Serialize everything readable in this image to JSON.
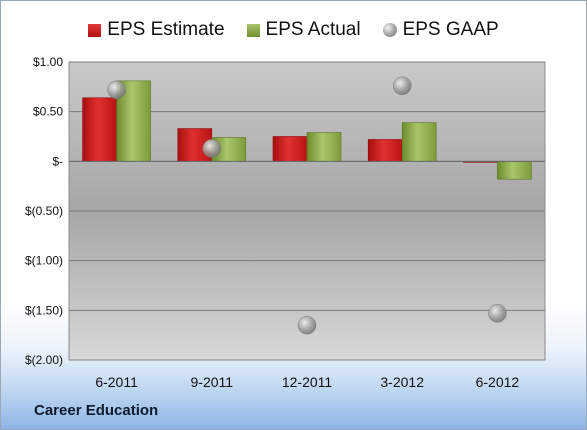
{
  "company_label": "Career Education",
  "legend": {
    "estimate": "EPS Estimate",
    "actual": "EPS Actual",
    "gaap": "EPS GAAP"
  },
  "colors": {
    "estimate": "#c41b1b",
    "actual": "#8aa84a",
    "gaap": "#a9a9a9"
  },
  "chart_data": {
    "type": "bar",
    "categories": [
      "6-2011",
      "9-2011",
      "12-2011",
      "3-2012",
      "6-2012"
    ],
    "series": [
      {
        "name": "EPS Estimate",
        "values": [
          0.64,
          0.33,
          0.25,
          0.22,
          -0.01
        ]
      },
      {
        "name": "EPS Actual",
        "values": [
          0.81,
          0.24,
          0.29,
          0.39,
          -0.18
        ]
      },
      {
        "name": "EPS GAAP",
        "marker": "circle",
        "values": [
          0.72,
          0.13,
          -1.65,
          0.76,
          -1.53
        ]
      }
    ],
    "ylim": [
      -2.0,
      1.0
    ],
    "yticks": [
      1.0,
      0.5,
      0.0,
      -0.5,
      -1.0,
      -1.5,
      -2.0
    ],
    "ytick_labels": [
      "$1.00",
      "$0.50",
      "$-",
      "$(0.50)",
      "$(1.00)",
      "$(1.50)",
      "$(2.00)"
    ],
    "grid": true,
    "legend_position": "top"
  }
}
